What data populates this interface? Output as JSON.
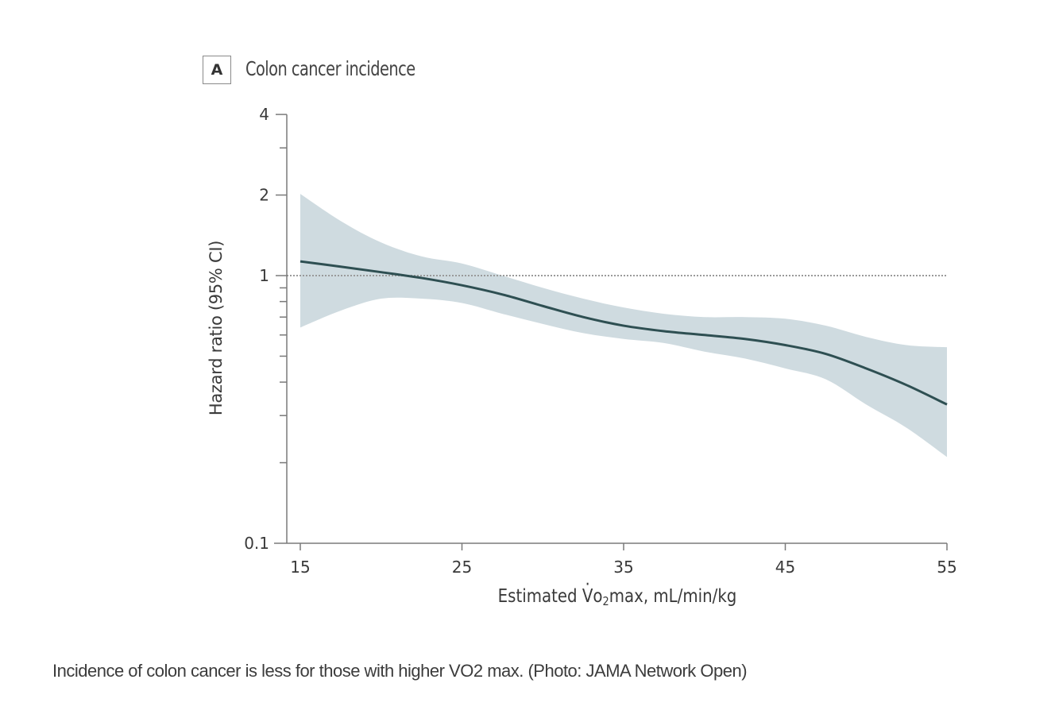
{
  "panel": {
    "letter": "A",
    "title": "Colon cancer incidence"
  },
  "caption": "Incidence of colon cancer is less for those with higher VO2 max. (Photo: JAMA Network Open)",
  "colors": {
    "line": "#2e4f52",
    "ci_band": "#cfdbe0",
    "axis": "#7a7a7a",
    "reference_line": "#9a9a9a"
  },
  "chart_data": {
    "type": "line",
    "title": "Colon cancer incidence",
    "panel_label": "A",
    "xlabel_parts": {
      "v": "V",
      "o": "o",
      "sub": "2",
      "rest": "max, mL/min/kg",
      "prefix": "Estimated "
    },
    "xlabel": "Estimated V̇o2max, mL/min/kg",
    "ylabel": "Hazard ratio (95% CI)",
    "y_scale": "log",
    "xlim": [
      15,
      55
    ],
    "ylim": [
      0.1,
      4
    ],
    "x_ticks": [
      15,
      25,
      35,
      45,
      55
    ],
    "x_tick_labels": [
      "15",
      "25",
      "35",
      "45",
      "55"
    ],
    "y_ticks_major": [
      0.1,
      1,
      2,
      4
    ],
    "y_tick_labels": [
      "0.1",
      "1",
      "2",
      "4"
    ],
    "y_ticks_minor": [
      0.2,
      0.3,
      0.4,
      0.5,
      0.6,
      0.7,
      0.8,
      0.9,
      3
    ],
    "reference_line": {
      "y": 1,
      "style": "dotted"
    },
    "grid": false,
    "legend": "none",
    "x": [
      15,
      17.5,
      20,
      22.5,
      25,
      27.5,
      30,
      32.5,
      35,
      37.5,
      40,
      42.5,
      45,
      47.5,
      50,
      52.5,
      55
    ],
    "series": [
      {
        "name": "Hazard ratio",
        "values": [
          1.13,
          1.08,
          1.03,
          0.98,
          0.92,
          0.85,
          0.77,
          0.7,
          0.65,
          0.62,
          0.6,
          0.58,
          0.55,
          0.51,
          0.45,
          0.39,
          0.33
        ]
      },
      {
        "name": "95% CI upper",
        "values": [
          2.02,
          1.6,
          1.33,
          1.18,
          1.11,
          1.0,
          0.9,
          0.82,
          0.76,
          0.72,
          0.7,
          0.7,
          0.69,
          0.65,
          0.59,
          0.55,
          0.54
        ]
      },
      {
        "name": "95% CI lower",
        "values": [
          0.64,
          0.74,
          0.82,
          0.82,
          0.79,
          0.72,
          0.66,
          0.61,
          0.58,
          0.56,
          0.52,
          0.49,
          0.45,
          0.41,
          0.33,
          0.27,
          0.21
        ]
      }
    ]
  }
}
